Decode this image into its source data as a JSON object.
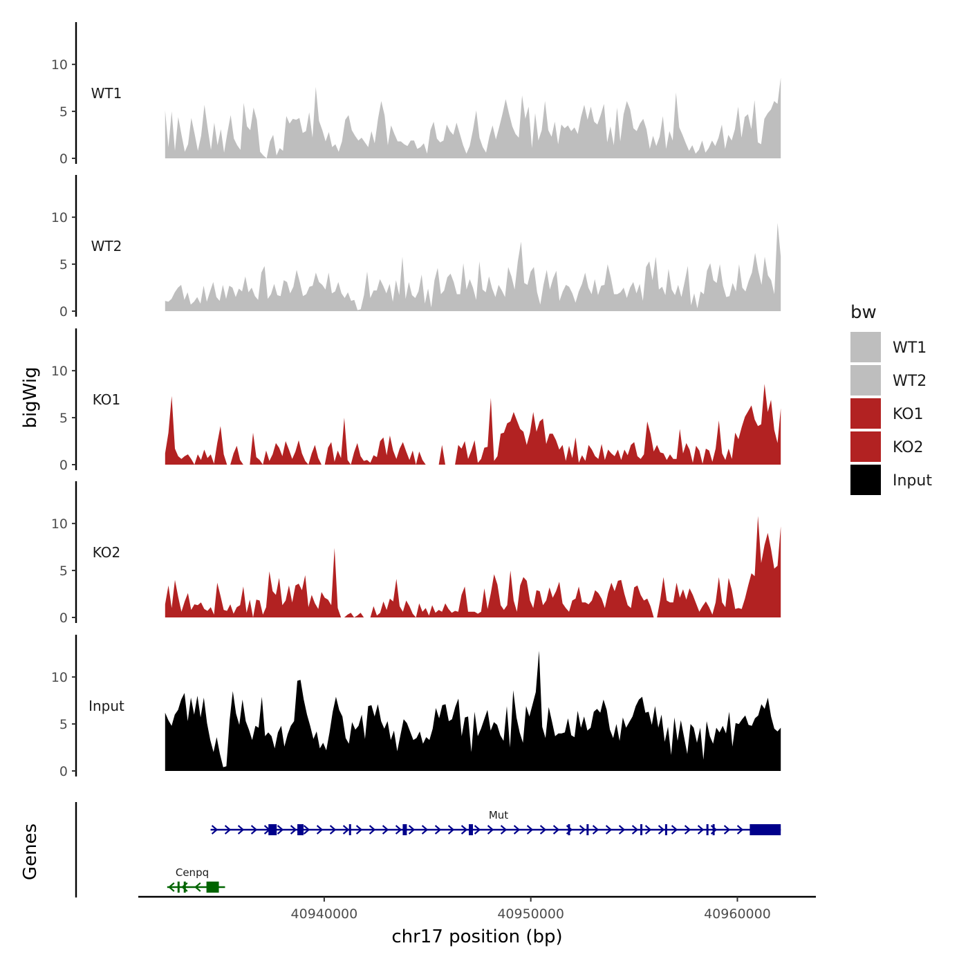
{
  "chart_data": {
    "type": "area",
    "title": "",
    "ylabel_tracks": "bigWig",
    "ylabel_genes": "Genes",
    "xlabel": "chr17 position (bp)",
    "xlim": [
      40931000,
      40963800
    ],
    "ylim": [
      0,
      14.5
    ],
    "x_range_data": [
      40932300,
      40962100
    ],
    "y_ticks": [
      0,
      5,
      10
    ],
    "x_ticks": [
      40940000,
      40950000,
      40960000
    ],
    "x_tick_labels": [
      "40940000",
      "40950000",
      "40960000"
    ],
    "legend": {
      "title": "bw",
      "entries": [
        {
          "name": "WT1",
          "color": "#bebebe"
        },
        {
          "name": "WT2",
          "color": "#bebebe"
        },
        {
          "name": "KO1",
          "color": "#b22222"
        },
        {
          "name": "KO2",
          "color": "#b22222"
        },
        {
          "name": "Input",
          "color": "#000000"
        }
      ]
    },
    "series": [
      {
        "name": "WT1",
        "color": "#bebebe",
        "values": [
          5.1,
          1.2,
          5.0,
          0.8,
          4.4,
          2.5,
          0.7,
          1.5,
          4.3,
          2.6,
          0.8,
          2.4,
          5.7,
          3.2,
          0.9,
          3.8,
          1.4,
          3.1,
          0.6,
          2.7,
          4.6,
          2.1,
          1.4,
          0.9,
          5.9,
          3.4,
          3.0,
          5.4,
          4.1,
          0.7,
          0.3,
          0.0,
          1.8,
          2.5,
          0.3,
          1.1,
          0.8,
          4.5,
          3.7,
          4.2,
          4.1,
          4.3,
          2.7,
          2.9,
          4.9,
          2.2,
          7.6,
          4.0,
          3.0,
          1.8,
          2.8,
          1.2,
          1.5,
          0.7,
          1.8,
          4.1,
          4.6,
          3.0,
          2.4,
          1.9,
          2.2,
          1.7,
          1.2,
          2.9,
          1.6,
          4.2,
          6.1,
          4.6,
          1.4,
          3.5,
          2.6,
          1.8,
          1.8,
          1.5,
          1.3,
          1.9,
          1.9,
          1.0,
          1.2,
          1.6,
          0.5,
          3.0,
          3.9,
          2.1,
          1.7,
          1.9,
          3.6,
          2.9,
          2.5,
          3.8,
          2.6,
          1.4,
          0.5,
          1.3,
          3.0,
          5.1,
          2.2,
          1.2,
          0.6,
          2.3,
          3.5,
          2.0,
          3.3,
          4.7,
          6.3,
          4.8,
          3.4,
          2.6,
          2.2,
          6.7,
          4.2,
          5.5,
          1.1,
          4.8,
          1.9,
          3.0,
          6.1,
          3.0,
          2.3,
          3.9,
          1.5,
          3.6,
          3.2,
          3.5,
          2.9,
          3.3,
          2.6,
          4.4,
          5.7,
          4.1,
          5.5,
          3.9,
          3.6,
          4.6,
          5.8,
          1.7,
          3.4,
          1.4,
          5.4,
          1.8,
          4.7,
          6.1,
          5.2,
          3.2,
          2.9,
          3.7,
          4.2,
          3.1,
          1.0,
          2.4,
          1.3,
          2.3,
          4.5,
          1.0,
          2.9,
          1.9,
          7.0,
          3.3,
          2.5,
          1.6,
          0.8,
          1.4,
          0.5,
          0.9,
          1.9,
          0.6,
          1.1,
          1.9,
          1.3,
          2.2,
          3.6,
          1.0,
          2.5,
          1.9,
          3.1,
          5.5,
          2.2,
          4.4,
          4.7,
          3.1,
          6.2,
          1.7,
          1.5,
          4.2,
          4.8,
          5.2,
          6.1,
          5.8,
          8.6
        ]
      },
      {
        "name": "WT2",
        "color": "#bebebe",
        "values": [
          1.1,
          1.0,
          1.3,
          2.0,
          2.5,
          2.8,
          1.2,
          2.0,
          0.7,
          1.0,
          1.5,
          0.8,
          2.7,
          1.0,
          2.1,
          3.1,
          1.5,
          1.1,
          2.8,
          1.3,
          2.7,
          2.5,
          1.5,
          2.4,
          2.1,
          3.7,
          2.0,
          2.5,
          1.6,
          1.2,
          4.1,
          4.8,
          1.3,
          1.8,
          2.9,
          1.7,
          1.6,
          3.3,
          3.1,
          1.9,
          2.6,
          4.4,
          3.1,
          1.6,
          1.8,
          2.6,
          2.7,
          4.1,
          3.1,
          2.8,
          2.3,
          4.1,
          1.9,
          2.1,
          3.1,
          1.9,
          1.4,
          2.0,
          1.1,
          1.2,
          0.1,
          0.2,
          1.7,
          4.2,
          1.4,
          2.2,
          2.2,
          3.4,
          2.7,
          1.9,
          2.9,
          1.0,
          3.3,
          1.7,
          5.8,
          1.3,
          3.1,
          1.7,
          1.4,
          2.1,
          3.9,
          0.8,
          2.4,
          0.4,
          3.3,
          4.6,
          1.8,
          2.2,
          3.6,
          4.0,
          3.1,
          1.8,
          1.8,
          5.1,
          2.3,
          3.4,
          2.5,
          1.2,
          5.3,
          2.3,
          2.0,
          3.7,
          2.4,
          1.5,
          2.8,
          2.2,
          1.5,
          4.7,
          3.7,
          2.3,
          5.3,
          7.4,
          3.0,
          2.8,
          4.2,
          4.7,
          2.0,
          0.7,
          2.8,
          4.4,
          2.3,
          3.5,
          4.3,
          1.1,
          2.1,
          2.8,
          2.6,
          1.9,
          0.9,
          2.1,
          2.9,
          4.1,
          2.5,
          1.8,
          3.4,
          1.7,
          2.7,
          2.8,
          5.0,
          3.6,
          1.8,
          1.8,
          2.0,
          2.5,
          1.4,
          2.5,
          3.1,
          1.9,
          2.9,
          1.1,
          4.7,
          5.3,
          3.3,
          5.8,
          2.3,
          2.6,
          1.7,
          4.5,
          2.3,
          1.7,
          2.8,
          1.5,
          3.1,
          4.8,
          0.6,
          1.9,
          0.3,
          2.1,
          1.8,
          4.3,
          5.1,
          3.3,
          3.0,
          5.0,
          2.7,
          1.5,
          1.6,
          3.0,
          2.1,
          5.0,
          2.5,
          2.1,
          3.2,
          4.1,
          6.2,
          4.3,
          2.8,
          5.8,
          3.8,
          3.3,
          1.8,
          9.4,
          5.8
        ]
      },
      {
        "name": "KO1",
        "color": "#b22222",
        "values": [
          1.2,
          3.4,
          7.3,
          1.7,
          0.9,
          0.6,
          0.9,
          1.1,
          0.6,
          0.0,
          1.1,
          0.5,
          1.6,
          0.7,
          1.1,
          0.1,
          2.3,
          4.1,
          1.1,
          0.0,
          0.0,
          1.2,
          2.0,
          0.5,
          0.0,
          0.0,
          0.0,
          3.4,
          0.8,
          0.5,
          0.0,
          1.5,
          0.4,
          1.1,
          2.3,
          1.8,
          0.9,
          2.5,
          1.6,
          0.6,
          1.4,
          2.6,
          1.2,
          0.4,
          0.0,
          1.2,
          2.1,
          0.7,
          0.0,
          0.0,
          1.8,
          2.4,
          0.3,
          1.5,
          0.7,
          5.0,
          0.5,
          0.0,
          1.3,
          2.3,
          0.9,
          0.4,
          0.5,
          0.2,
          1.0,
          0.8,
          2.5,
          2.9,
          1.0,
          3.1,
          1.5,
          0.6,
          1.7,
          2.4,
          1.4,
          0.5,
          1.5,
          0.0,
          1.4,
          0.5,
          0.0,
          0.0,
          0.0,
          0.0,
          0.0,
          2.1,
          0.0,
          0.0,
          0.0,
          0.0,
          2.1,
          1.7,
          2.5,
          0.6,
          1.5,
          2.6,
          0.2,
          0.6,
          1.8,
          1.9,
          7.1,
          0.4,
          0.9,
          3.3,
          3.4,
          4.4,
          4.6,
          5.6,
          4.7,
          3.8,
          3.5,
          2.1,
          3.4,
          5.6,
          3.5,
          4.6,
          4.9,
          2.2,
          3.3,
          3.3,
          2.6,
          1.6,
          2.1,
          0.4,
          2.0,
          0.7,
          2.9,
          0.2,
          1.0,
          0.4,
          2.1,
          1.6,
          0.9,
          0.6,
          2.2,
          0.5,
          1.6,
          1.2,
          0.9,
          1.6,
          0.5,
          1.6,
          1.0,
          2.1,
          2.4,
          0.9,
          0.6,
          1.1,
          4.6,
          3.3,
          1.4,
          2.1,
          1.3,
          1.2,
          0.5,
          1.1,
          0.6,
          0.6,
          3.8,
          1.2,
          2.3,
          1.6,
          0.2,
          2.0,
          1.5,
          0.1,
          1.7,
          1.5,
          0.3,
          1.7,
          4.7,
          1.2,
          0.5,
          1.7,
          0.6,
          3.4,
          2.7,
          4.0,
          5.1,
          5.7,
          6.3,
          4.8,
          4.1,
          4.3,
          8.6,
          5.6,
          6.9,
          3.7,
          2.3,
          6.0
        ]
      },
      {
        "name": "KO2",
        "color": "#b22222",
        "values": [
          1.4,
          3.4,
          1.0,
          4.0,
          2.2,
          0.6,
          1.7,
          2.6,
          0.8,
          1.4,
          1.3,
          1.6,
          0.9,
          0.7,
          1.1,
          0.3,
          3.7,
          2.3,
          0.8,
          0.7,
          1.4,
          0.4,
          1.1,
          1.3,
          3.3,
          0.5,
          1.9,
          0.0,
          1.9,
          1.8,
          0.3,
          1.1,
          4.9,
          2.8,
          2.4,
          4.2,
          1.3,
          1.8,
          3.4,
          1.6,
          3.4,
          3.6,
          2.9,
          4.5,
          1.1,
          2.4,
          1.5,
          0.9,
          2.7,
          2.1,
          1.9,
          1.3,
          7.4,
          1.0,
          0.0,
          0.0,
          0.3,
          0.5,
          0.0,
          0.2,
          0.5,
          0.0,
          0.0,
          0.0,
          1.2,
          0.2,
          0.5,
          1.7,
          0.8,
          2.0,
          1.7,
          4.1,
          1.2,
          0.6,
          1.8,
          1.2,
          0.4,
          0.0,
          1.5,
          0.6,
          1.0,
          0.2,
          1.3,
          0.5,
          0.8,
          0.6,
          1.5,
          0.9,
          0.5,
          0.7,
          0.6,
          2.4,
          3.3,
          0.6,
          0.6,
          0.6,
          0.4,
          0.6,
          3.1,
          0.9,
          2.6,
          4.6,
          3.5,
          1.3,
          0.8,
          1.3,
          5.0,
          1.8,
          0.6,
          3.4,
          4.3,
          3.9,
          1.8,
          1.0,
          2.9,
          2.8,
          1.3,
          1.8,
          3.2,
          2.1,
          2.8,
          3.8,
          1.5,
          1.0,
          0.6,
          1.8,
          2.0,
          3.3,
          1.6,
          1.6,
          1.4,
          1.8,
          2.9,
          2.6,
          2.0,
          1.0,
          2.6,
          3.7,
          2.8,
          3.9,
          4.0,
          2.5,
          1.3,
          1.0,
          3.2,
          3.4,
          2.4,
          1.8,
          2.0,
          1.2,
          0.0,
          0.0,
          1.9,
          4.3,
          1.8,
          1.6,
          1.6,
          3.7,
          2.1,
          3.0,
          1.9,
          3.1,
          2.4,
          1.5,
          0.6,
          1.2,
          1.7,
          1.1,
          0.3,
          1.6,
          4.3,
          1.6,
          1.1,
          4.2,
          2.9,
          0.9,
          1.0,
          0.9,
          2.0,
          3.4,
          4.7,
          4.4,
          10.8,
          5.8,
          7.7,
          9.0,
          7.3,
          5.2,
          5.5,
          9.7
        ]
      },
      {
        "name": "Input",
        "color": "#000000",
        "values": [
          6.2,
          5.4,
          4.8,
          6.0,
          6.5,
          7.6,
          8.3,
          5.3,
          7.8,
          6.0,
          8.0,
          5.7,
          7.8,
          5.1,
          3.3,
          2.0,
          3.6,
          1.8,
          0.4,
          0.5,
          5.4,
          8.5,
          6.1,
          4.9,
          7.6,
          5.3,
          4.4,
          3.3,
          4.8,
          4.6,
          7.9,
          3.7,
          4.1,
          3.7,
          2.4,
          4.1,
          4.8,
          2.6,
          3.9,
          4.8,
          5.3,
          9.6,
          9.7,
          7.6,
          6.0,
          4.8,
          3.4,
          4.2,
          2.4,
          3.0,
          2.2,
          4.1,
          6.3,
          7.9,
          6.5,
          5.8,
          3.5,
          2.9,
          5.2,
          4.4,
          4.8,
          6.0,
          3.4,
          6.9,
          7.0,
          5.8,
          7.1,
          5.3,
          4.5,
          5.3,
          3.3,
          4.3,
          2.1,
          3.8,
          5.5,
          5.1,
          4.2,
          3.3,
          3.5,
          4.2,
          2.9,
          3.6,
          3.3,
          4.5,
          6.7,
          5.6,
          7.0,
          7.1,
          5.3,
          5.5,
          6.8,
          7.7,
          3.7,
          5.7,
          5.8,
          2.0,
          6.3,
          3.7,
          4.5,
          5.5,
          6.5,
          4.3,
          5.2,
          4.9,
          3.8,
          3.2,
          6.9,
          2.5,
          8.6,
          5.7,
          4.1,
          3.0,
          6.9,
          5.8,
          7.1,
          8.4,
          12.8,
          4.7,
          3.5,
          6.8,
          5.3,
          3.7,
          4.0,
          4.0,
          4.1,
          5.6,
          3.8,
          3.6,
          6.4,
          4.6,
          5.8,
          4.3,
          4.6,
          6.3,
          6.6,
          6.2,
          7.6,
          6.5,
          4.4,
          3.5,
          5.0,
          3.2,
          5.7,
          4.6,
          5.2,
          5.8,
          6.9,
          7.6,
          7.9,
          6.2,
          6.3,
          4.9,
          6.9,
          4.6,
          6.0,
          3.1,
          4.7,
          1.7,
          5.7,
          3.2,
          5.4,
          3.6,
          1.8,
          5.0,
          4.6,
          3.0,
          4.6,
          1.2,
          5.3,
          3.7,
          2.9,
          4.6,
          4.1,
          4.8,
          4.0,
          6.3,
          2.6,
          5.1,
          5.0,
          5.5,
          5.9,
          4.9,
          4.8,
          5.6,
          5.9,
          7.1,
          6.6,
          7.8,
          5.8,
          4.5,
          4.2,
          4.6
        ]
      }
    ],
    "genes": [
      {
        "name": "Mut",
        "strand": "+",
        "color": "#00008b",
        "start": 40934500,
        "end": 40962100,
        "exons": [
          [
            40937300,
            40937700
          ],
          [
            40938700,
            40939000
          ],
          [
            40941200,
            40941300
          ],
          [
            40943800,
            40944000
          ],
          [
            40947000,
            40947200
          ],
          [
            40951800,
            40951900
          ],
          [
            40952700,
            40952800
          ],
          [
            40955300,
            40955400
          ],
          [
            40956500,
            40956600
          ],
          [
            40958500,
            40958600
          ],
          [
            40958800,
            40958900
          ],
          [
            40960600,
            40962100
          ]
        ]
      },
      {
        "name": "Cenpq",
        "strand": "-",
        "color": "#006400",
        "start": 40932400,
        "end": 40935200,
        "exons": [
          [
            40932900,
            40933000
          ],
          [
            40933200,
            40933300
          ],
          [
            40934300,
            40934900
          ]
        ]
      }
    ]
  }
}
